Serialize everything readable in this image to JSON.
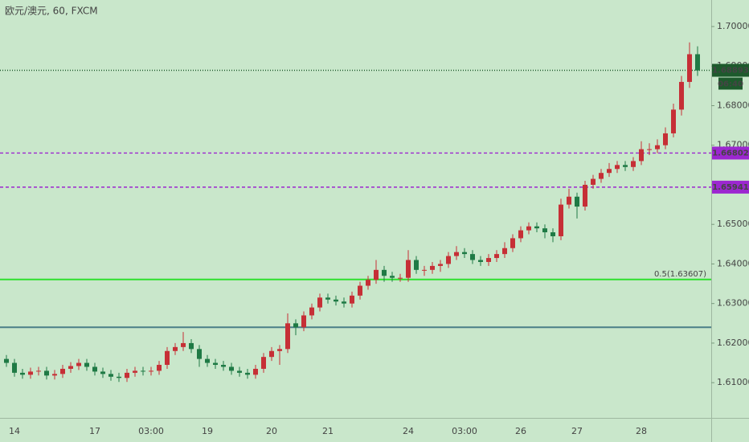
{
  "chart_data": {
    "type": "candlestick",
    "title": "欧元/澳元, 60, FXCM",
    "up_color": "#c62f36",
    "down_color": "#1f7a45",
    "categories": [
      null,
      "14",
      null,
      null,
      null,
      null,
      null,
      null,
      null,
      null,
      null,
      "17",
      null,
      null,
      null,
      null,
      null,
      null,
      "03:00",
      null,
      null,
      null,
      null,
      null,
      null,
      "19",
      null,
      null,
      null,
      null,
      null,
      null,
      null,
      "20",
      null,
      null,
      null,
      null,
      null,
      null,
      "21",
      null,
      null,
      null,
      null,
      null,
      null,
      null,
      null,
      null,
      "24",
      null,
      null,
      null,
      null,
      null,
      null,
      "03:00",
      null,
      null,
      null,
      null,
      null,
      null,
      "26",
      null,
      null,
      null,
      null,
      null,
      null,
      "27",
      null,
      null,
      null,
      null,
      null,
      null,
      null,
      "28",
      null,
      null,
      null,
      null,
      null,
      null,
      null
    ],
    "open": [
      1.616,
      1.615,
      1.6125,
      1.612,
      1.6128,
      1.613,
      1.6118,
      1.6122,
      1.6135,
      1.6142,
      1.615,
      1.614,
      1.6128,
      1.6122,
      1.6115,
      1.6112,
      1.6125,
      1.613,
      1.6128,
      1.613,
      1.6145,
      1.618,
      1.619,
      1.62,
      1.6185,
      1.616,
      1.615,
      1.6145,
      1.614,
      1.613,
      1.6125,
      1.612,
      1.6135,
      1.6165,
      1.618,
      1.6185,
      1.625,
      1.624,
      1.627,
      1.629,
      1.6315,
      1.631,
      1.6305,
      1.63,
      1.632,
      1.6345,
      1.636,
      1.6385,
      1.637,
      1.6365,
      1.6365,
      1.641,
      1.6385,
      1.6385,
      1.6395,
      1.64,
      1.642,
      1.643,
      1.6425,
      1.641,
      1.6405,
      1.6415,
      1.6425,
      1.644,
      1.6465,
      1.6485,
      1.6495,
      1.649,
      1.648,
      1.647,
      1.655,
      1.657,
      1.6545,
      1.66,
      1.6615,
      1.663,
      1.664,
      1.665,
      1.6645,
      1.666,
      1.669,
      1.669,
      1.67,
      1.673,
      1.679,
      1.686,
      1.693
    ],
    "high": [
      1.617,
      1.616,
      1.6135,
      1.6138,
      1.614,
      1.614,
      1.6132,
      1.6145,
      1.6152,
      1.616,
      1.616,
      1.615,
      1.6138,
      1.6132,
      1.6125,
      1.6135,
      1.614,
      1.614,
      1.614,
      1.6155,
      1.619,
      1.62,
      1.6228,
      1.621,
      1.6195,
      1.617,
      1.616,
      1.6155,
      1.615,
      1.614,
      1.6135,
      1.6145,
      1.6175,
      1.619,
      1.6195,
      1.6275,
      1.626,
      1.628,
      1.63,
      1.6325,
      1.6325,
      1.632,
      1.6315,
      1.633,
      1.6355,
      1.637,
      1.641,
      1.6395,
      1.638,
      1.6375,
      1.6435,
      1.642,
      1.6395,
      1.6405,
      1.641,
      1.643,
      1.6445,
      1.644,
      1.6435,
      1.642,
      1.6425,
      1.6435,
      1.6455,
      1.6475,
      1.6495,
      1.6505,
      1.6505,
      1.65,
      1.649,
      1.6565,
      1.659,
      1.658,
      1.661,
      1.6625,
      1.664,
      1.6655,
      1.666,
      1.666,
      1.667,
      1.671,
      1.6705,
      1.6715,
      1.6745,
      1.6805,
      1.6875,
      1.696,
      1.695
    ],
    "low": [
      1.614,
      1.6115,
      1.611,
      1.611,
      1.6118,
      1.6108,
      1.6108,
      1.6112,
      1.6125,
      1.6132,
      1.613,
      1.6118,
      1.6112,
      1.6105,
      1.6102,
      1.6102,
      1.6115,
      1.6118,
      1.6118,
      1.612,
      1.6135,
      1.617,
      1.618,
      1.6175,
      1.614,
      1.614,
      1.6135,
      1.613,
      1.612,
      1.6115,
      1.611,
      1.611,
      1.6125,
      1.6155,
      1.6145,
      1.6175,
      1.622,
      1.623,
      1.626,
      1.628,
      1.63,
      1.6295,
      1.629,
      1.629,
      1.631,
      1.6335,
      1.635,
      1.6355,
      1.6355,
      1.6355,
      1.6355,
      1.6375,
      1.637,
      1.6375,
      1.638,
      1.639,
      1.641,
      1.6415,
      1.64,
      1.6395,
      1.6395,
      1.6405,
      1.6415,
      1.643,
      1.6455,
      1.6475,
      1.648,
      1.6465,
      1.6455,
      1.646,
      1.654,
      1.6515,
      1.6535,
      1.659,
      1.6605,
      1.662,
      1.663,
      1.6635,
      1.6635,
      1.665,
      1.6675,
      1.668,
      1.669,
      1.672,
      1.6775,
      1.6845,
      1.6875
    ],
    "close": [
      1.615,
      1.6125,
      1.612,
      1.6128,
      1.613,
      1.6118,
      1.6122,
      1.6135,
      1.6142,
      1.615,
      1.614,
      1.6128,
      1.6122,
      1.6115,
      1.6112,
      1.6125,
      1.613,
      1.6128,
      1.613,
      1.6145,
      1.618,
      1.619,
      1.62,
      1.6185,
      1.616,
      1.615,
      1.6145,
      1.614,
      1.613,
      1.6125,
      1.612,
      1.6135,
      1.6165,
      1.618,
      1.6185,
      1.625,
      1.624,
      1.627,
      1.629,
      1.6315,
      1.631,
      1.6305,
      1.63,
      1.632,
      1.6345,
      1.636,
      1.6385,
      1.637,
      1.6365,
      1.6365,
      1.641,
      1.6385,
      1.6385,
      1.6395,
      1.64,
      1.642,
      1.643,
      1.6425,
      1.641,
      1.6405,
      1.6415,
      1.6425,
      1.644,
      1.6465,
      1.6485,
      1.6495,
      1.649,
      1.648,
      1.647,
      1.655,
      1.657,
      1.6545,
      1.66,
      1.6615,
      1.663,
      1.664,
      1.665,
      1.6645,
      1.666,
      1.669,
      1.669,
      1.67,
      1.673,
      1.679,
      1.686,
      1.693,
      1.6889
    ],
    "ylim": [
      1.6011,
      1.7067
    ],
    "yticks": [
      {
        "value": 1.61,
        "label": "1.61000"
      },
      {
        "value": 1.62,
        "label": "1.62000"
      },
      {
        "value": 1.63,
        "label": "1.63000"
      },
      {
        "value": 1.64,
        "label": "1.64000"
      },
      {
        "value": 1.65,
        "label": "1.65000"
      },
      {
        "value": 1.66,
        "label": "1.66000"
      },
      {
        "value": 1.67,
        "label": "1.67000"
      },
      {
        "value": 1.68,
        "label": "1.68000"
      },
      {
        "value": 1.69,
        "label": "1.69000"
      },
      {
        "value": 1.7,
        "label": "1.70000"
      }
    ],
    "lines": [
      {
        "value": 1.68893,
        "color": "#1d5a2c",
        "style": "dotted"
      },
      {
        "value": 1.66802,
        "color": "#9c27d0",
        "style": "dashed"
      },
      {
        "value": 1.65941,
        "color": "#9c27d0",
        "style": "dashed"
      },
      {
        "value": 1.63607,
        "label": "0.5(1.63607)",
        "color": "#2ee02e",
        "style": "solid"
      },
      {
        "value": 1.624,
        "color": "#4b7f88",
        "style": "solid"
      }
    ],
    "countdown": "06:40"
  }
}
